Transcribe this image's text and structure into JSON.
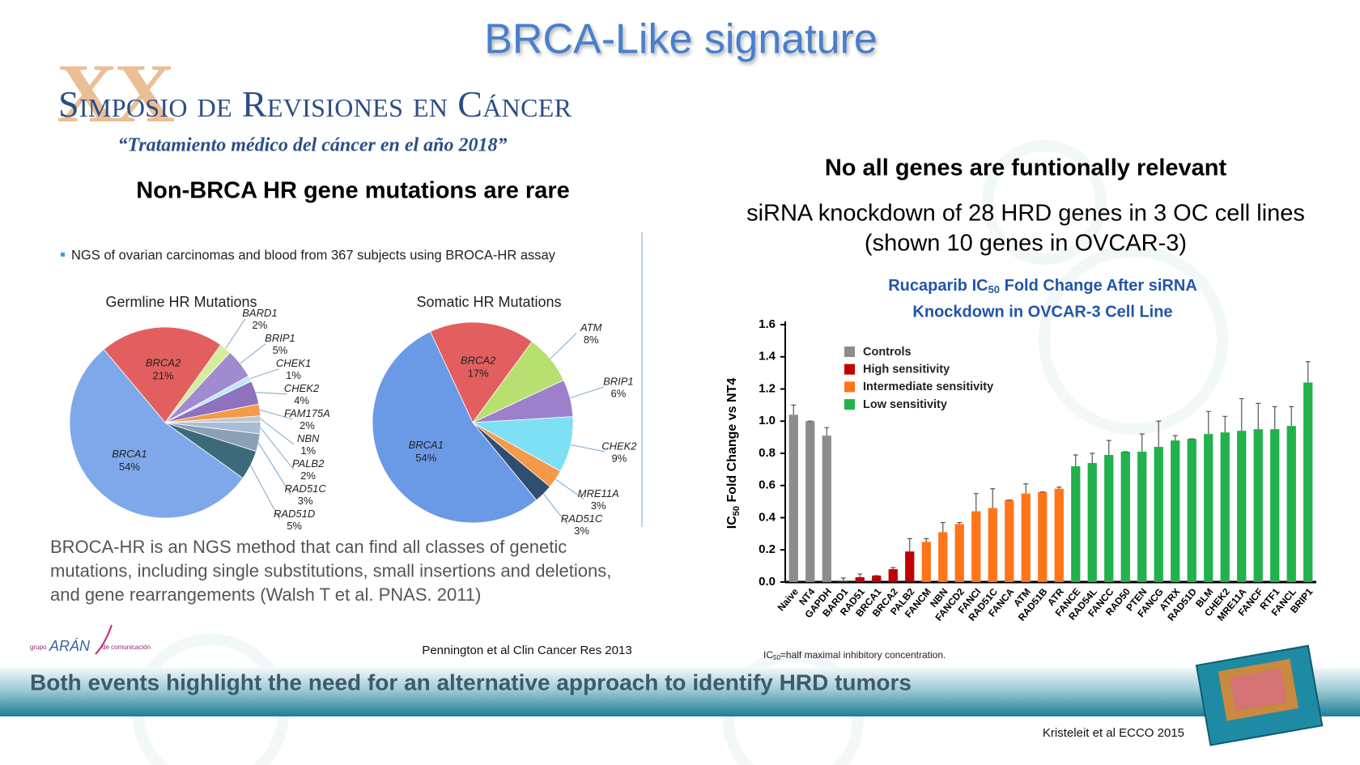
{
  "title": "BRCA-Like signature",
  "logo": {
    "roman": "XX",
    "name": "Simposio de Revisiones en Cáncer",
    "subtitle": "“Tratamiento médico del cáncer en el año 2018”"
  },
  "left": {
    "heading": "Non-BRCA HR gene mutations are rare",
    "note": "NGS of ovarian carcinomas and blood from 367 subjects using BROCA-HR assay",
    "body": [
      "BROCA-HR is an NGS method that can find all classes of genetic",
      "mutations, including single substitutions, small insertions and deletions,",
      "and gene rearrangements (Walsh T et al. PNAS. 2011)"
    ],
    "citation": "Pennington et al Clin Cancer Res 2013"
  },
  "right": {
    "heading": "No all genes are funtionally relevant",
    "subheading": [
      "siRNA knockdown of 28 HRD genes in 3 OC cell lines",
      "(shown 10 genes in OVCAR-3)"
    ],
    "footnote": [
      "IC",
      "50",
      "=half maximal inhibitory concentration."
    ],
    "citation": "Kristeleit et al ECCO 2015"
  },
  "footer": "Both events highlight the need for an alternative approach to identify HRD tumors",
  "publisher": {
    "prefix": "grupo",
    "name": "ARÁN",
    "suffix": "de comunicación"
  },
  "chart_data": [
    {
      "type": "pie",
      "title": "Germline HR Mutations",
      "categories": [
        "BRCA2",
        "BARD1",
        "BRIP1",
        "CHEK1",
        "CHEK2",
        "FAM175A",
        "NBN",
        "PALB2",
        "RAD51C",
        "RAD51D",
        "BRCA1"
      ],
      "values": [
        21,
        2,
        5,
        1,
        4,
        2,
        1,
        2,
        3,
        5,
        54
      ],
      "value_labels": [
        "21%",
        "2%",
        "5%",
        "1%",
        "4%",
        "2%",
        "1%",
        "2%",
        "3%",
        "5%",
        "54%"
      ],
      "colors": [
        "#e35f5f",
        "#d4ee9a",
        "#a08ad0",
        "#bfe8f5",
        "#8e72c0",
        "#f59a4a",
        "#c0c8d0",
        "#a8bcd4",
        "#8aa0b4",
        "#3d6a78",
        "#7ea8ea"
      ]
    },
    {
      "type": "pie",
      "title": "Somatic HR Mutations",
      "categories": [
        "BRCA2",
        "ATM",
        "BRIP1",
        "CHEK2",
        "MRE11A",
        "RAD51C",
        "BRCA1"
      ],
      "values": [
        17,
        8,
        6,
        9,
        3,
        3,
        54
      ],
      "value_labels": [
        "17%",
        "8%",
        "6%",
        "9%",
        "3%",
        "3%",
        "54%"
      ],
      "colors": [
        "#e35f5f",
        "#b8e070",
        "#9c80cc",
        "#7ee0f4",
        "#f59a4a",
        "#2f4e70",
        "#6a9ae6"
      ]
    },
    {
      "type": "bar",
      "title": [
        "Rucaparib IC",
        "50",
        " Fold Change After siRNA",
        "Knockdown in OVCAR-3 Cell Line"
      ],
      "y_label": [
        "IC",
        "50",
        " Fold Change vs NT4"
      ],
      "categories": [
        "Naive",
        "NT4",
        "GAPDH",
        "BARD1",
        "RAD51",
        "BRCA1",
        "BRCA2",
        "PALB2",
        "FANCM",
        "NBN",
        "FANCD2",
        "FANCI",
        "RAD51C",
        "FANCA",
        "ATM",
        "RAD51B",
        "ATR",
        "FANCE",
        "RAD54L",
        "FANCC",
        "RAD50",
        "PTEN",
        "FANCG",
        "ATRX",
        "RAD51D",
        "BLM",
        "CHEK2",
        "MRE11A",
        "FANCF",
        "RTF1",
        "FANCL",
        "BRIP1"
      ],
      "series": [
        {
          "name": "Controls",
          "color": "#8c8c8c",
          "values": [
            1.04,
            1.0,
            0.91,
            null,
            null,
            null,
            null,
            null,
            null,
            null,
            null,
            null,
            null,
            null,
            null,
            null,
            null,
            null,
            null,
            null,
            null,
            null,
            null,
            null,
            null,
            null,
            null,
            null,
            null,
            null,
            null,
            null
          ],
          "errors": [
            0.06,
            0,
            0.05,
            null,
            null,
            null,
            null,
            null,
            null,
            null,
            null,
            null,
            null,
            null,
            null,
            null,
            null,
            null,
            null,
            null,
            null,
            null,
            null,
            null,
            null,
            null,
            null,
            null,
            null,
            null,
            null,
            null
          ]
        },
        {
          "name": "High sensitivity",
          "color": "#c00000",
          "values": [
            null,
            null,
            null,
            0.005,
            0.03,
            0.04,
            0.08,
            0.19,
            null,
            null,
            null,
            null,
            null,
            null,
            null,
            null,
            null,
            null,
            null,
            null,
            null,
            null,
            null,
            null,
            null,
            null,
            null,
            null,
            null,
            null,
            null,
            null
          ],
          "errors": [
            null,
            null,
            null,
            0.02,
            0.02,
            0,
            0.01,
            0.08,
            null,
            null,
            null,
            null,
            null,
            null,
            null,
            null,
            null,
            null,
            null,
            null,
            null,
            null,
            null,
            null,
            null,
            null,
            null,
            null,
            null,
            null,
            null,
            null
          ]
        },
        {
          "name": "Intermediate sensitivity",
          "color": "#ff7518",
          "values": [
            null,
            null,
            null,
            null,
            null,
            null,
            null,
            null,
            0.25,
            0.31,
            0.36,
            0.44,
            0.46,
            0.51,
            0.55,
            0.56,
            0.58,
            null,
            null,
            null,
            null,
            null,
            null,
            null,
            null,
            null,
            null,
            null,
            null,
            null,
            null,
            null
          ],
          "errors": [
            null,
            null,
            null,
            null,
            null,
            null,
            null,
            null,
            0.02,
            0.06,
            0.01,
            0.11,
            0.12,
            0,
            0.06,
            0,
            0.01,
            null,
            null,
            null,
            null,
            null,
            null,
            null,
            null,
            null,
            null,
            null,
            null,
            null,
            null,
            null
          ]
        },
        {
          "name": "Low sensitivity",
          "color": "#22b14c",
          "values": [
            null,
            null,
            null,
            null,
            null,
            null,
            null,
            null,
            null,
            null,
            null,
            null,
            null,
            null,
            null,
            null,
            null,
            0.72,
            0.74,
            0.79,
            0.81,
            0.81,
            0.84,
            0.88,
            0.89,
            0.92,
            0.93,
            0.94,
            0.95,
            0.95,
            0.97,
            1.24
          ],
          "errors": [
            null,
            null,
            null,
            null,
            null,
            null,
            null,
            null,
            null,
            null,
            null,
            null,
            null,
            null,
            null,
            null,
            null,
            0.07,
            0.06,
            0.09,
            0,
            0.11,
            0.16,
            0.03,
            0,
            0.14,
            0.1,
            0.2,
            0.16,
            0.14,
            0.12,
            0.13
          ]
        }
      ],
      "ylim": [
        0,
        1.6
      ],
      "yticks": [
        {
          "value": 0,
          "label": "0.0"
        },
        0.2,
        0.4,
        0.6,
        0.8,
        {
          "value": 1,
          "label": "1.0"
        },
        1.2,
        1.4,
        1.6
      ]
    }
  ]
}
